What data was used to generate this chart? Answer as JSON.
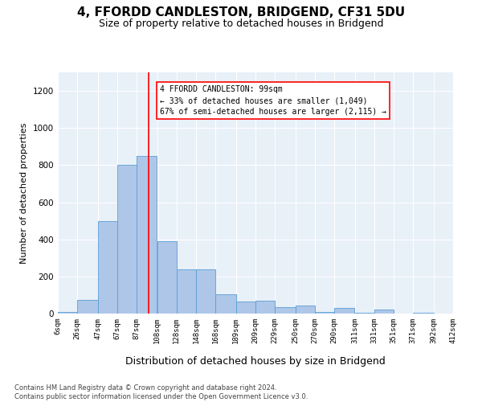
{
  "title": "4, FFORDD CANDLESTON, BRIDGEND, CF31 5DU",
  "subtitle": "Size of property relative to detached houses in Bridgend",
  "xlabel": "Distribution of detached houses by size in Bridgend",
  "ylabel": "Number of detached properties",
  "bin_edges": [
    6,
    26,
    47,
    67,
    87,
    108,
    128,
    148,
    168,
    189,
    209,
    229,
    250,
    270,
    290,
    311,
    331,
    351,
    371,
    392,
    412
  ],
  "bar_heights": [
    10,
    75,
    500,
    800,
    850,
    390,
    240,
    240,
    105,
    65,
    70,
    35,
    45,
    10,
    30,
    5,
    20,
    0,
    5,
    0
  ],
  "bar_color": "#aec6e8",
  "bar_edge_color": "#5a9fd4",
  "background_color": "#e8f0f8",
  "ylim": [
    0,
    1300
  ],
  "yticks": [
    0,
    200,
    400,
    600,
    800,
    1000,
    1200
  ],
  "property_size": 99,
  "annotation_text": "4 FFORDD CANDLESTON: 99sqm\n← 33% of detached houses are smaller (1,049)\n67% of semi-detached houses are larger (2,115) →",
  "footer": "Contains HM Land Registry data © Crown copyright and database right 2024.\nContains public sector information licensed under the Open Government Licence v3.0.",
  "title_fontsize": 11,
  "subtitle_fontsize": 9,
  "xlabel_fontsize": 9,
  "ylabel_fontsize": 8,
  "annotation_fontsize": 7,
  "footer_fontsize": 6
}
